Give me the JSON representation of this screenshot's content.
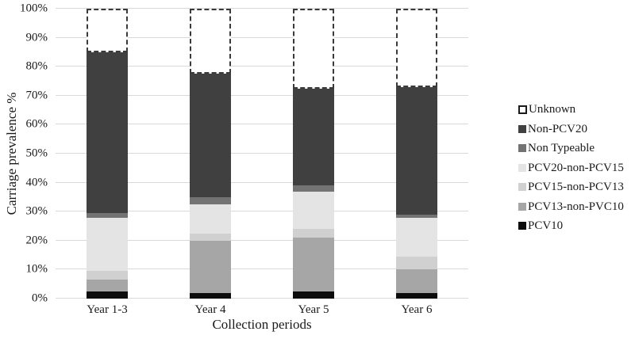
{
  "chart_data": {
    "type": "bar",
    "stacked": true,
    "title": "",
    "xlabel": "Collection periods",
    "ylabel": "Carriage prevalence %",
    "categories": [
      "Year 1-3",
      "Year 4",
      "Year 5",
      "Year 6"
    ],
    "series": [
      {
        "name": "PCV10",
        "color": "#0d0d0d",
        "values": [
          2.5,
          2.0,
          2.5,
          2.0
        ]
      },
      {
        "name": "PCV13-non-PVC10",
        "color": "#a6a6a6",
        "values": [
          4.0,
          18.0,
          18.5,
          8.0
        ]
      },
      {
        "name": "PCV15-non-PCV13",
        "color": "#d0d0d0",
        "values": [
          3.0,
          2.5,
          3.0,
          4.5
        ]
      },
      {
        "name": "PCV20-non-PCV15",
        "color": "#e4e4e4",
        "values": [
          18.5,
          10.0,
          13.0,
          13.5
        ]
      },
      {
        "name": "Non Typeable",
        "color": "#737373",
        "values": [
          1.5,
          2.5,
          2.0,
          1.0
        ]
      },
      {
        "name": "Non-PCV20",
        "color": "#404040",
        "values": [
          55.5,
          42.5,
          33.5,
          44.0
        ]
      },
      {
        "name": "Unknown",
        "color": "#ffffff",
        "border": "dashed",
        "values": [
          15.0,
          22.5,
          27.5,
          27.0
        ]
      }
    ],
    "legend_order_top_to_bottom": [
      "Unknown",
      "Non-PCV20",
      "Non Typeable",
      "PCV20-non-PCV15",
      "PCV15-non-PCV13",
      "PCV13-non-PVC10",
      "PCV10"
    ],
    "legend_position": "right",
    "ylim": [
      0,
      100
    ],
    "y_tick_labels": [
      "0%",
      "10%",
      "20%",
      "30%",
      "40%",
      "50%",
      "60%",
      "70%",
      "80%",
      "90%",
      "100%"
    ],
    "grid": true
  }
}
